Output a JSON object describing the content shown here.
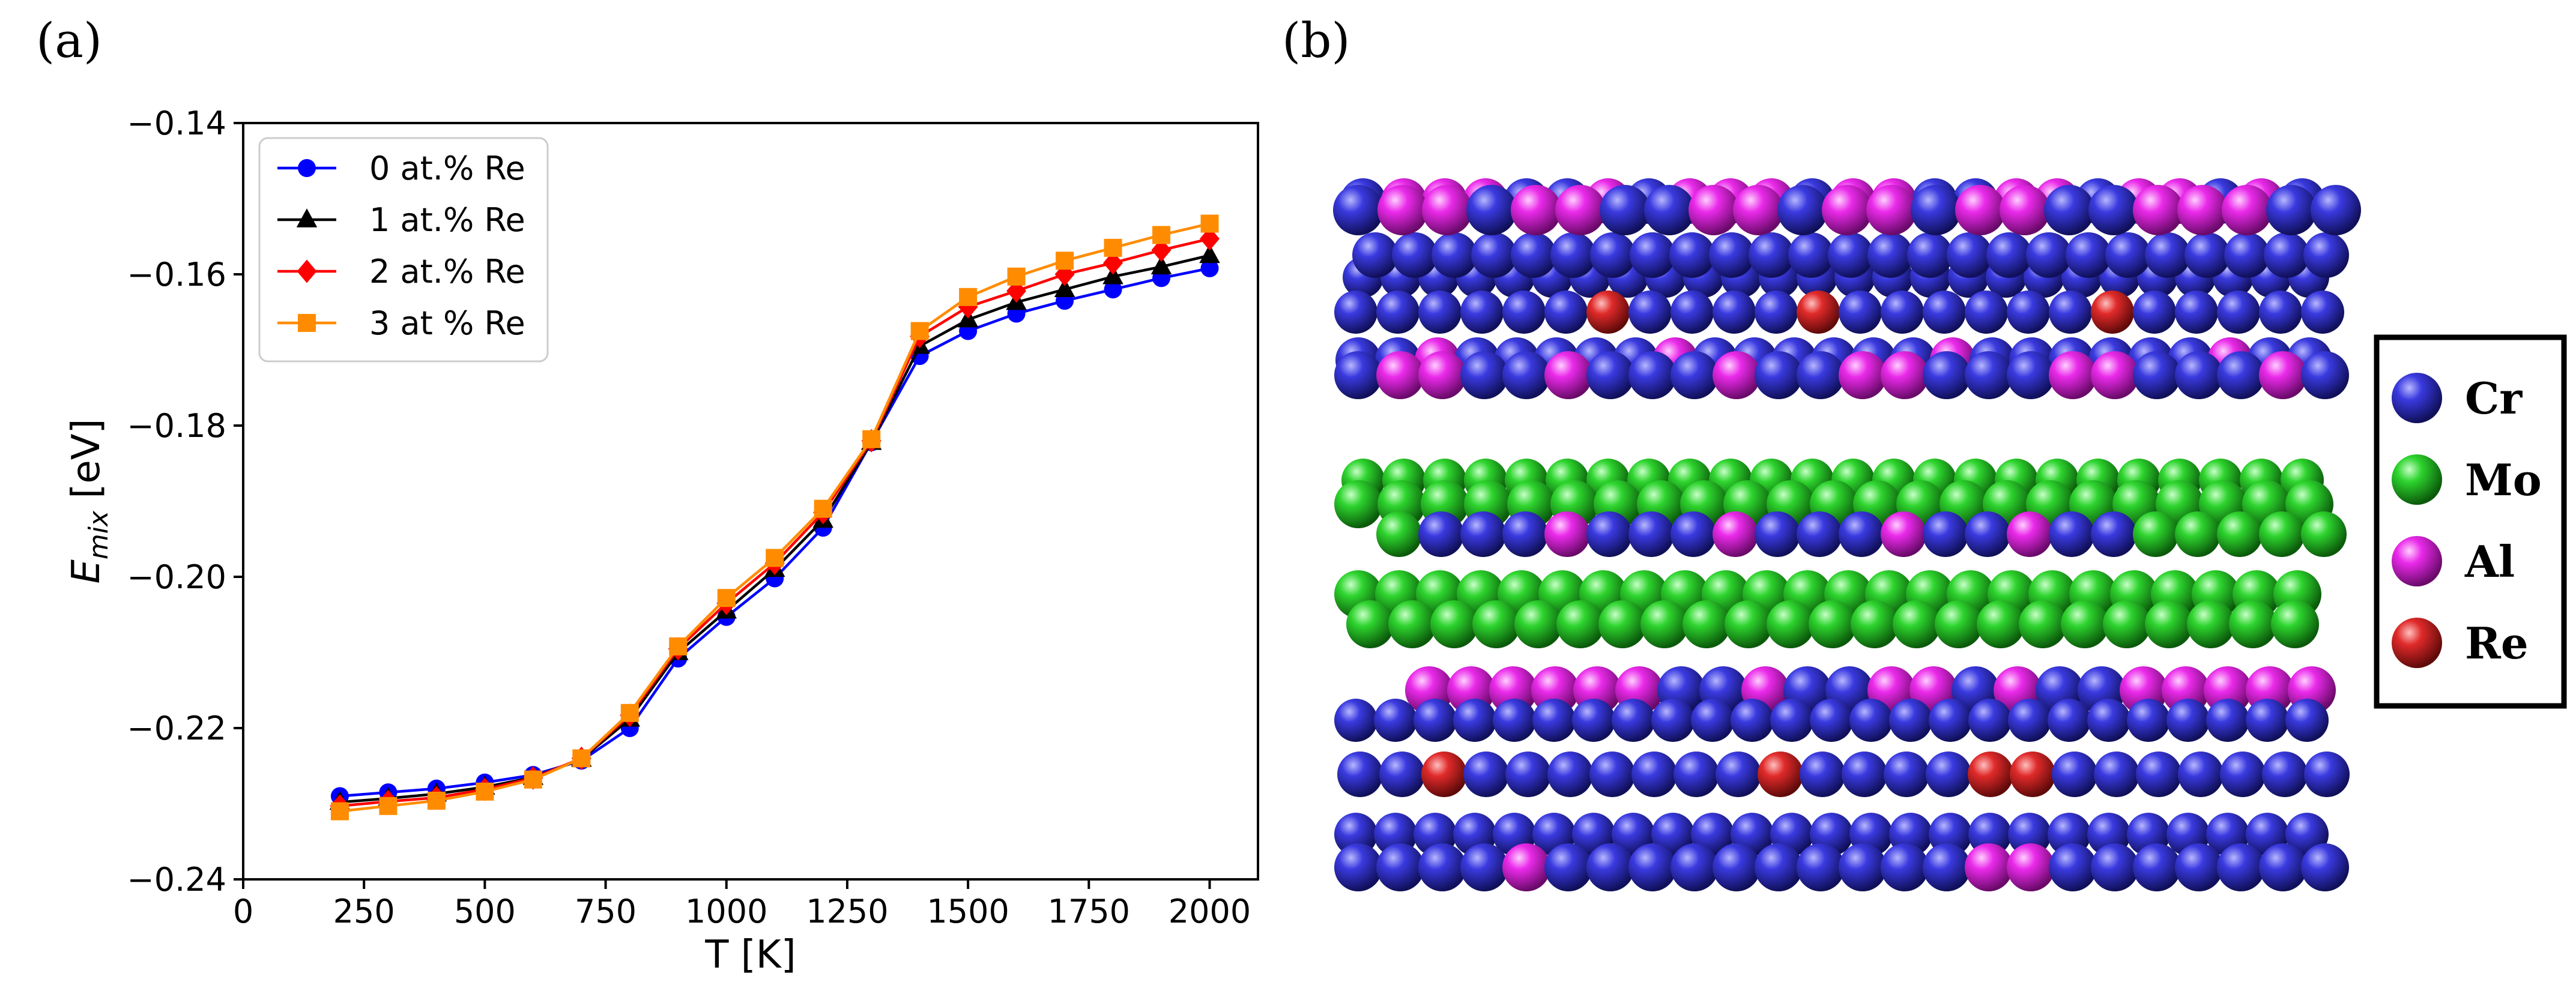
{
  "panels": {
    "a": "(a)",
    "b": "(b)"
  },
  "chart_data": {
    "type": "line",
    "xlabel": "T [K]",
    "ylabel_main": "E",
    "ylabel_sub": "mix",
    "ylabel_unit": " [eV]",
    "xlim": [
      0,
      2100
    ],
    "ylim": [
      -0.24,
      -0.14
    ],
    "xticks": [
      0,
      250,
      500,
      750,
      1000,
      1250,
      1500,
      1750,
      2000
    ],
    "xtick_labels": [
      "0",
      "250",
      "500",
      "750",
      "1000",
      "1250",
      "1500",
      "1750",
      "2000"
    ],
    "yticks": [
      -0.24,
      -0.22,
      -0.2,
      -0.18,
      -0.16,
      -0.14
    ],
    "ytick_labels": [
      "−0.24",
      "−0.22",
      "−0.20",
      "−0.18",
      "−0.16",
      "−0.14"
    ],
    "legend_position": "top-left",
    "grid": false,
    "x": [
      200,
      300,
      400,
      500,
      600,
      700,
      800,
      900,
      1000,
      1100,
      1200,
      1300,
      1400,
      1500,
      1600,
      1700,
      1800,
      1900,
      2000
    ],
    "series": [
      {
        "name": "0 at.% Re",
        "color": "#0000ff",
        "marker": "circle",
        "values": [
          -0.229,
          -0.2285,
          -0.228,
          -0.2272,
          -0.2262,
          -0.2243,
          -0.22,
          -0.2108,
          -0.2053,
          -0.2002,
          -0.1935,
          -0.1822,
          -0.1708,
          -0.1675,
          -0.1652,
          -0.1635,
          -0.162,
          -0.1605,
          -0.1592
        ]
      },
      {
        "name": "1 at.% Re",
        "color": "#000000",
        "marker": "triangle",
        "values": [
          -0.2298,
          -0.2293,
          -0.2287,
          -0.2278,
          -0.2265,
          -0.2241,
          -0.2188,
          -0.21,
          -0.2045,
          -0.199,
          -0.1925,
          -0.1822,
          -0.1695,
          -0.166,
          -0.1637,
          -0.162,
          -0.1603,
          -0.159,
          -0.1575
        ]
      },
      {
        "name": "2 at.% Re",
        "color": "#ff0000",
        "marker": "diamond",
        "values": [
          -0.2303,
          -0.2297,
          -0.2292,
          -0.2281,
          -0.2266,
          -0.224,
          -0.2183,
          -0.2095,
          -0.2035,
          -0.1982,
          -0.1915,
          -0.182,
          -0.1682,
          -0.1643,
          -0.1622,
          -0.16,
          -0.1585,
          -0.1568,
          -0.1553
        ]
      },
      {
        "name": "3 at % Re",
        "color": "#ff8c00",
        "marker": "square",
        "values": [
          -0.231,
          -0.2303,
          -0.2296,
          -0.2284,
          -0.2268,
          -0.224,
          -0.218,
          -0.2092,
          -0.2028,
          -0.1975,
          -0.191,
          -0.1818,
          -0.1675,
          -0.163,
          -0.1603,
          -0.1582,
          -0.1565,
          -0.1548,
          -0.1533
        ]
      }
    ]
  },
  "structure_legend": [
    {
      "label": "Cr",
      "color": "#2a2ad8"
    },
    {
      "label": "Mo",
      "color": "#22c022"
    },
    {
      "label": "Al",
      "color": "#e022e0"
    },
    {
      "label": "Re",
      "color": "#e02020"
    }
  ]
}
